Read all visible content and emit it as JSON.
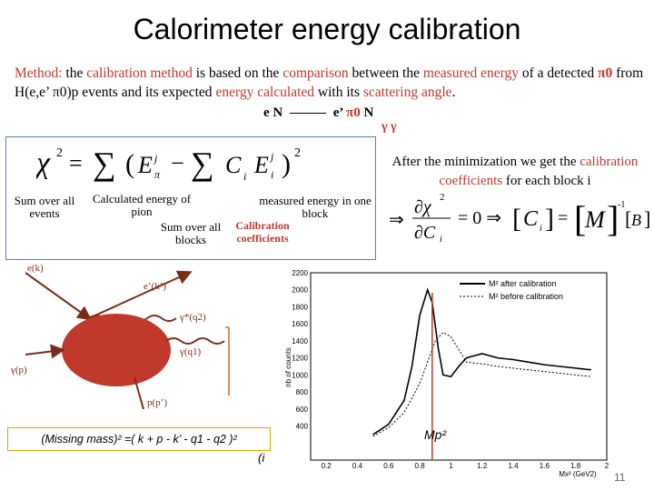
{
  "title": "Calorimeter energy calibration",
  "method": {
    "p1": "Method:",
    "p2": " the ",
    "p3": "calibration method",
    "p4": " is based on the ",
    "p5": "comparison",
    "p6": " between the ",
    "p7": "measured energy",
    "p8": " of  a detected ",
    "p9": "π0",
    "p10": " from H(e,e’ π0)p events and its expected ",
    "p11": "energy calculated",
    "p12": " with its ",
    "p13": "scattering angle",
    "p14": "."
  },
  "reaction": {
    "left": "e N",
    "right": "e’ ",
    "pi": "π0",
    "end": " N",
    "gammas": "γ  γ"
  },
  "formula_box": {
    "sum_events": "Sum over all events",
    "calc_energy": "Calculated energy of pion",
    "measured": "measured energy in one block",
    "sum_blocks": "Sum over all blocks",
    "calib_coeff": "Calibration coefficients"
  },
  "after_text": {
    "a": "After the minimization we  get the ",
    "b": "calibration coefficients",
    "c": " for each block i"
  },
  "diagram_labels": {
    "ek": "e(k)",
    "ekp": "e’(k’)",
    "gq2": "γ*(q2)",
    "gq1": "γ(q1)",
    "pp": "γ(p)",
    "pprime": "p(p’)"
  },
  "missing_mass": "(Missing mass)² =( k + p - k’ - q1 - q2 )²",
  "missing_frag": "(i",
  "mp2_label": "Mp²",
  "page_number": "11",
  "chart_data": {
    "type": "line",
    "xlabel": "Mx² (GeV2)",
    "ylabel": "nb of counts",
    "xlim": [
      0.1,
      2.0
    ],
    "ylim": [
      0,
      2200
    ],
    "xticks": [
      "0.2",
      "0.4",
      "0.6",
      "0.8",
      "1",
      "1.2",
      "1.4",
      "1.6",
      "1.8",
      "2"
    ],
    "yticks": [
      "400",
      "600",
      "800",
      "1000",
      "1200",
      "1400",
      "1600",
      "1800",
      "2000",
      "2200"
    ],
    "legend": [
      "M² after calibration",
      "M² before calibration"
    ],
    "series": [
      {
        "name": "M² after calibration",
        "x": [
          0.5,
          0.6,
          0.7,
          0.75,
          0.8,
          0.85,
          0.88,
          0.92,
          0.95,
          1.0,
          1.05,
          1.1,
          1.2,
          1.3,
          1.4,
          1.5,
          1.6,
          1.7,
          1.8,
          1.9
        ],
        "y": [
          300,
          420,
          700,
          1100,
          1700,
          2000,
          1850,
          1300,
          1000,
          980,
          1100,
          1200,
          1250,
          1200,
          1180,
          1150,
          1120,
          1100,
          1080,
          1060
        ]
      },
      {
        "name": "M² before calibration",
        "x": [
          0.5,
          0.6,
          0.7,
          0.8,
          0.9,
          0.95,
          1.0,
          1.05,
          1.1,
          1.2,
          1.3,
          1.4,
          1.5,
          1.6,
          1.7,
          1.8,
          1.9
        ],
        "y": [
          280,
          380,
          560,
          900,
          1400,
          1500,
          1450,
          1300,
          1150,
          1130,
          1100,
          1080,
          1060,
          1040,
          1020,
          1000,
          980
        ]
      }
    ],
    "marker_x": 0.88,
    "marker_label": "Mp²"
  },
  "colors": {
    "accent": "#c0392b",
    "box_border": "#5b7fb6",
    "mm_border": "#e0a400"
  }
}
